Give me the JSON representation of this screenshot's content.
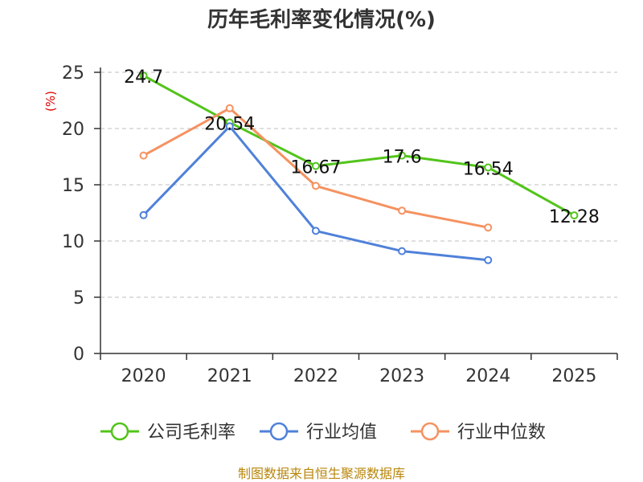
{
  "chart_data": {
    "type": "line",
    "title": "历年毛利率变化情况(%)",
    "ylabel": "(%)",
    "xlabel": "",
    "categories": [
      "2020",
      "2021",
      "2022",
      "2023",
      "2024",
      "2025"
    ],
    "ylim": [
      0,
      25
    ],
    "yticks": [
      0,
      5,
      10,
      15,
      20,
      25
    ],
    "grid": true,
    "legend_position": "bottom",
    "series": [
      {
        "name": "公司毛利率",
        "color": "#52c41a",
        "values": [
          24.7,
          20.54,
          16.67,
          17.6,
          16.54,
          12.28
        ],
        "labels": [
          "24.7",
          "20.54",
          "16.67",
          "17.6",
          "16.54",
          "12.28"
        ]
      },
      {
        "name": "行业均值",
        "color": "#4f81d9",
        "values": [
          12.3,
          20.2,
          10.9,
          9.1,
          8.3,
          null
        ]
      },
      {
        "name": "行业中位数",
        "color": "#f59260",
        "values": [
          17.6,
          21.8,
          14.9,
          12.7,
          11.2,
          null
        ]
      }
    ]
  },
  "footer": {
    "source": "制图数据来自恒生聚源数据库"
  }
}
